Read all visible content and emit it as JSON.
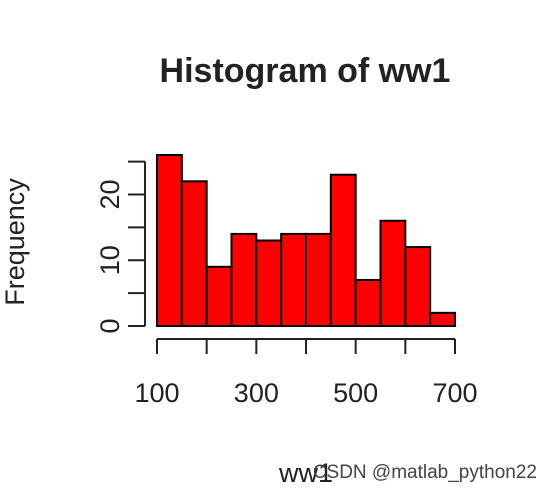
{
  "chart_data": {
    "type": "bar",
    "title": "Histogram of ww1",
    "xlabel": "ww1",
    "ylabel": "Frequency",
    "bin_edges": [
      100,
      150,
      200,
      250,
      300,
      350,
      400,
      450,
      500,
      550,
      600,
      650,
      700
    ],
    "values": [
      26,
      22,
      9,
      14,
      13,
      14,
      14,
      23,
      7,
      16,
      12,
      2
    ],
    "xlim": [
      100,
      700
    ],
    "ylim": [
      0,
      26
    ],
    "x_ticks": [
      100,
      200,
      300,
      400,
      500,
      600,
      700
    ],
    "x_tick_labels": [
      "100",
      "",
      "300",
      "",
      "500",
      "",
      "700"
    ],
    "y_ticks": [
      0,
      5,
      10,
      15,
      20,
      25
    ],
    "y_tick_labels": [
      "0",
      "",
      "10",
      "",
      "20",
      ""
    ],
    "bar_color": "#ff0000",
    "bar_edge_color": "#000000",
    "grid": false
  },
  "watermark": "CSDN @matlab_python22"
}
